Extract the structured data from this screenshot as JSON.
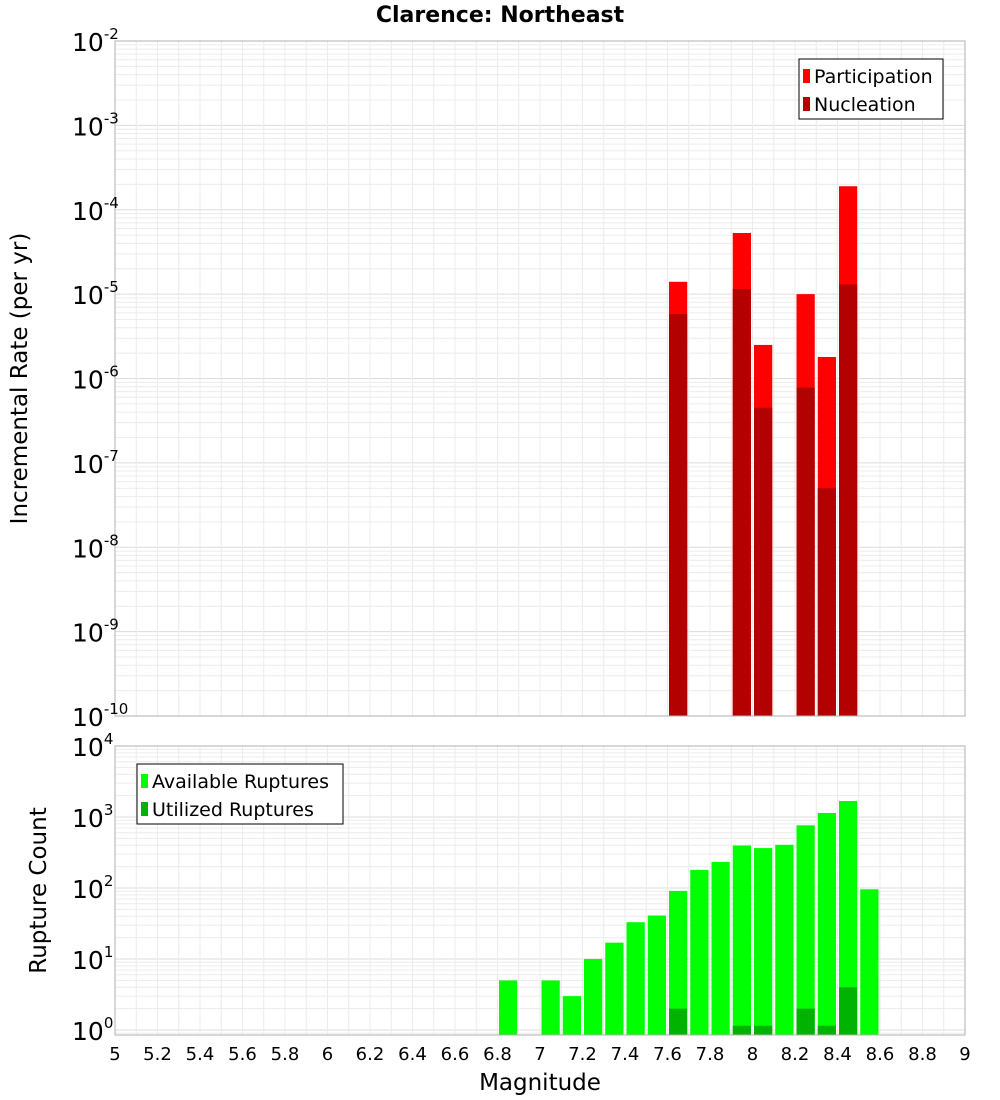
{
  "chart_data": {
    "title": "Clarence: Northeast",
    "xlabel": "Magnitude",
    "x_ticks": [
      "5",
      "5.2",
      "5.4",
      "5.6",
      "5.8",
      "6",
      "6.2",
      "6.4",
      "6.6",
      "6.8",
      "7",
      "7.2",
      "7.4",
      "7.6",
      "7.8",
      "8",
      "8.2",
      "8.4",
      "8.6",
      "8.8",
      "9"
    ],
    "xlim": [
      5,
      9
    ],
    "bin_width": 0.1,
    "panels": [
      {
        "type": "bar",
        "ylabel": "Incremental Rate (per yr)",
        "yscale": "log",
        "ylim_exp": [
          -10,
          -2
        ],
        "y_ticks": [
          {
            "base": "10",
            "exp": "-10"
          },
          {
            "base": "10",
            "exp": "-9"
          },
          {
            "base": "10",
            "exp": "-8"
          },
          {
            "base": "10",
            "exp": "-7"
          },
          {
            "base": "10",
            "exp": "-6"
          },
          {
            "base": "10",
            "exp": "-5"
          },
          {
            "base": "10",
            "exp": "-4"
          },
          {
            "base": "10",
            "exp": "-3"
          },
          {
            "base": "10",
            "exp": "-2"
          }
        ],
        "grid": true,
        "legend_position": "top-right",
        "series": [
          {
            "name": "Participation",
            "color": "#ff0000",
            "x": [
              7.65,
              7.95,
              8.05,
              8.25,
              8.35,
              8.45
            ],
            "values": [
              1.4e-05,
              5.3e-05,
              2.5e-06,
              1e-05,
              1.8e-06,
              0.00019
            ]
          },
          {
            "name": "Nucleation",
            "color": "#b30000",
            "x": [
              7.65,
              7.95,
              8.05,
              8.25,
              8.35,
              8.45
            ],
            "values": [
              5.8e-06,
              1.15e-05,
              4.5e-07,
              7.8e-07,
              5e-08,
              1.3e-05
            ]
          }
        ]
      },
      {
        "type": "bar",
        "ylabel": "Rupture Count",
        "yscale": "log",
        "ylim_exp": [
          -0.07,
          4
        ],
        "y_ticks": [
          {
            "base": "10",
            "exp": "0"
          },
          {
            "base": "10",
            "exp": "1"
          },
          {
            "base": "10",
            "exp": "2"
          },
          {
            "base": "10",
            "exp": "3"
          },
          {
            "base": "10",
            "exp": "4"
          }
        ],
        "grid": true,
        "legend_position": "top-left",
        "series": [
          {
            "name": "Available Ruptures",
            "color": "#00ff00",
            "x": [
              6.85,
              7.05,
              7.15,
              7.25,
              7.35,
              7.45,
              7.55,
              7.65,
              7.75,
              7.85,
              7.95,
              8.05,
              8.15,
              8.25,
              8.35,
              8.45,
              8.55
            ],
            "values": [
              5,
              5,
              3,
              10,
              17,
              33,
              41,
              91,
              180,
              233,
              397,
              365,
              406,
              764,
              1140,
              1680,
              96
            ]
          },
          {
            "name": "Utilized Ruptures",
            "color": "#00b300",
            "x": [
              7.65,
              7.95,
              8.05,
              8.25,
              8.35,
              8.45
            ],
            "values": [
              2,
              1.15,
              1.15,
              2,
              1.15,
              4
            ]
          }
        ]
      }
    ]
  }
}
